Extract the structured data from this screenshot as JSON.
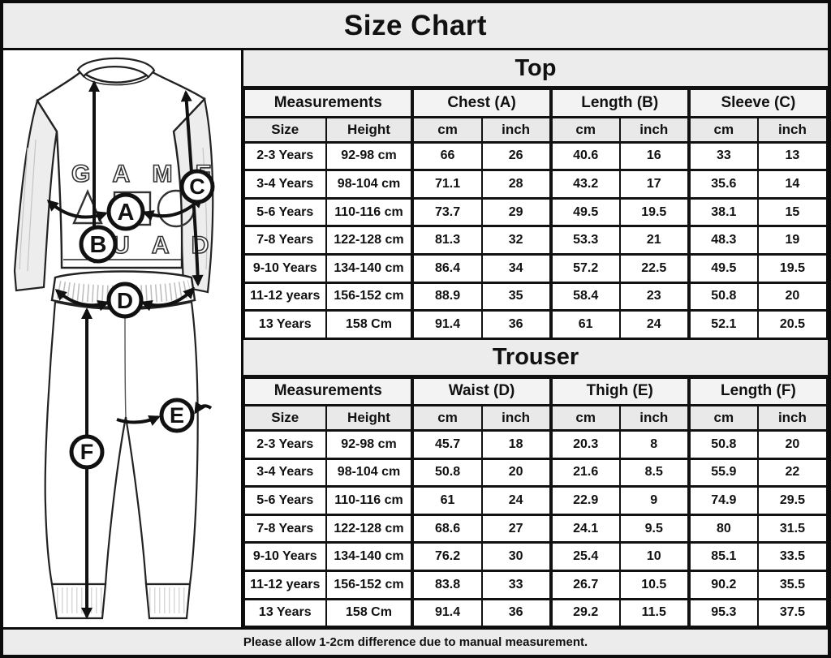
{
  "title": "Size Chart",
  "footer": "Please allow 1-2cm difference due to manual measurement.",
  "colors": {
    "band_bg": "#ececec",
    "group_header_bg": "#f3f3f3",
    "sub_header_bg": "#e9e9e9",
    "border": "#111111",
    "row_bg": "#ffffff"
  },
  "illustration": {
    "shirt_print_line1": "G A M E",
    "shirt_print_line2": "U A D",
    "labels": {
      "chest": "A",
      "top_length": "B",
      "sleeve": "C",
      "waist": "D",
      "thigh": "E",
      "trouser_length": "F"
    }
  },
  "tables": [
    {
      "title": "Top",
      "group_headers": [
        "Measurements",
        "Chest (A)",
        "Length (B)",
        "Sleeve (C)"
      ],
      "sub_headers": [
        "Size",
        "Height",
        "cm",
        "inch",
        "cm",
        "inch",
        "cm",
        "inch"
      ],
      "rows": [
        [
          "2-3 Years",
          "92-98 cm",
          "66",
          "26",
          "40.6",
          "16",
          "33",
          "13"
        ],
        [
          "3-4 Years",
          "98-104 cm",
          "71.1",
          "28",
          "43.2",
          "17",
          "35.6",
          "14"
        ],
        [
          "5-6 Years",
          "110-116 cm",
          "73.7",
          "29",
          "49.5",
          "19.5",
          "38.1",
          "15"
        ],
        [
          "7-8 Years",
          "122-128 cm",
          "81.3",
          "32",
          "53.3",
          "21",
          "48.3",
          "19"
        ],
        [
          "9-10 Years",
          "134-140 cm",
          "86.4",
          "34",
          "57.2",
          "22.5",
          "49.5",
          "19.5"
        ],
        [
          "11-12 years",
          "156-152 cm",
          "88.9",
          "35",
          "58.4",
          "23",
          "50.8",
          "20"
        ],
        [
          "13 Years",
          "158 Cm",
          "91.4",
          "36",
          "61",
          "24",
          "52.1",
          "20.5"
        ]
      ]
    },
    {
      "title": "Trouser",
      "group_headers": [
        "Measurements",
        "Waist (D)",
        "Thigh (E)",
        "Length (F)"
      ],
      "sub_headers": [
        "Size",
        "Height",
        "cm",
        "inch",
        "cm",
        "inch",
        "cm",
        "inch"
      ],
      "rows": [
        [
          "2-3 Years",
          "92-98 cm",
          "45.7",
          "18",
          "20.3",
          "8",
          "50.8",
          "20"
        ],
        [
          "3-4 Years",
          "98-104 cm",
          "50.8",
          "20",
          "21.6",
          "8.5",
          "55.9",
          "22"
        ],
        [
          "5-6 Years",
          "110-116 cm",
          "61",
          "24",
          "22.9",
          "9",
          "74.9",
          "29.5"
        ],
        [
          "7-8 Years",
          "122-128 cm",
          "68.6",
          "27",
          "24.1",
          "9.5",
          "80",
          "31.5"
        ],
        [
          "9-10 Years",
          "134-140 cm",
          "76.2",
          "30",
          "25.4",
          "10",
          "85.1",
          "33.5"
        ],
        [
          "11-12 years",
          "156-152 cm",
          "83.8",
          "33",
          "26.7",
          "10.5",
          "90.2",
          "35.5"
        ],
        [
          "13 Years",
          "158 Cm",
          "91.4",
          "36",
          "29.2",
          "11.5",
          "95.3",
          "37.5"
        ]
      ]
    }
  ]
}
